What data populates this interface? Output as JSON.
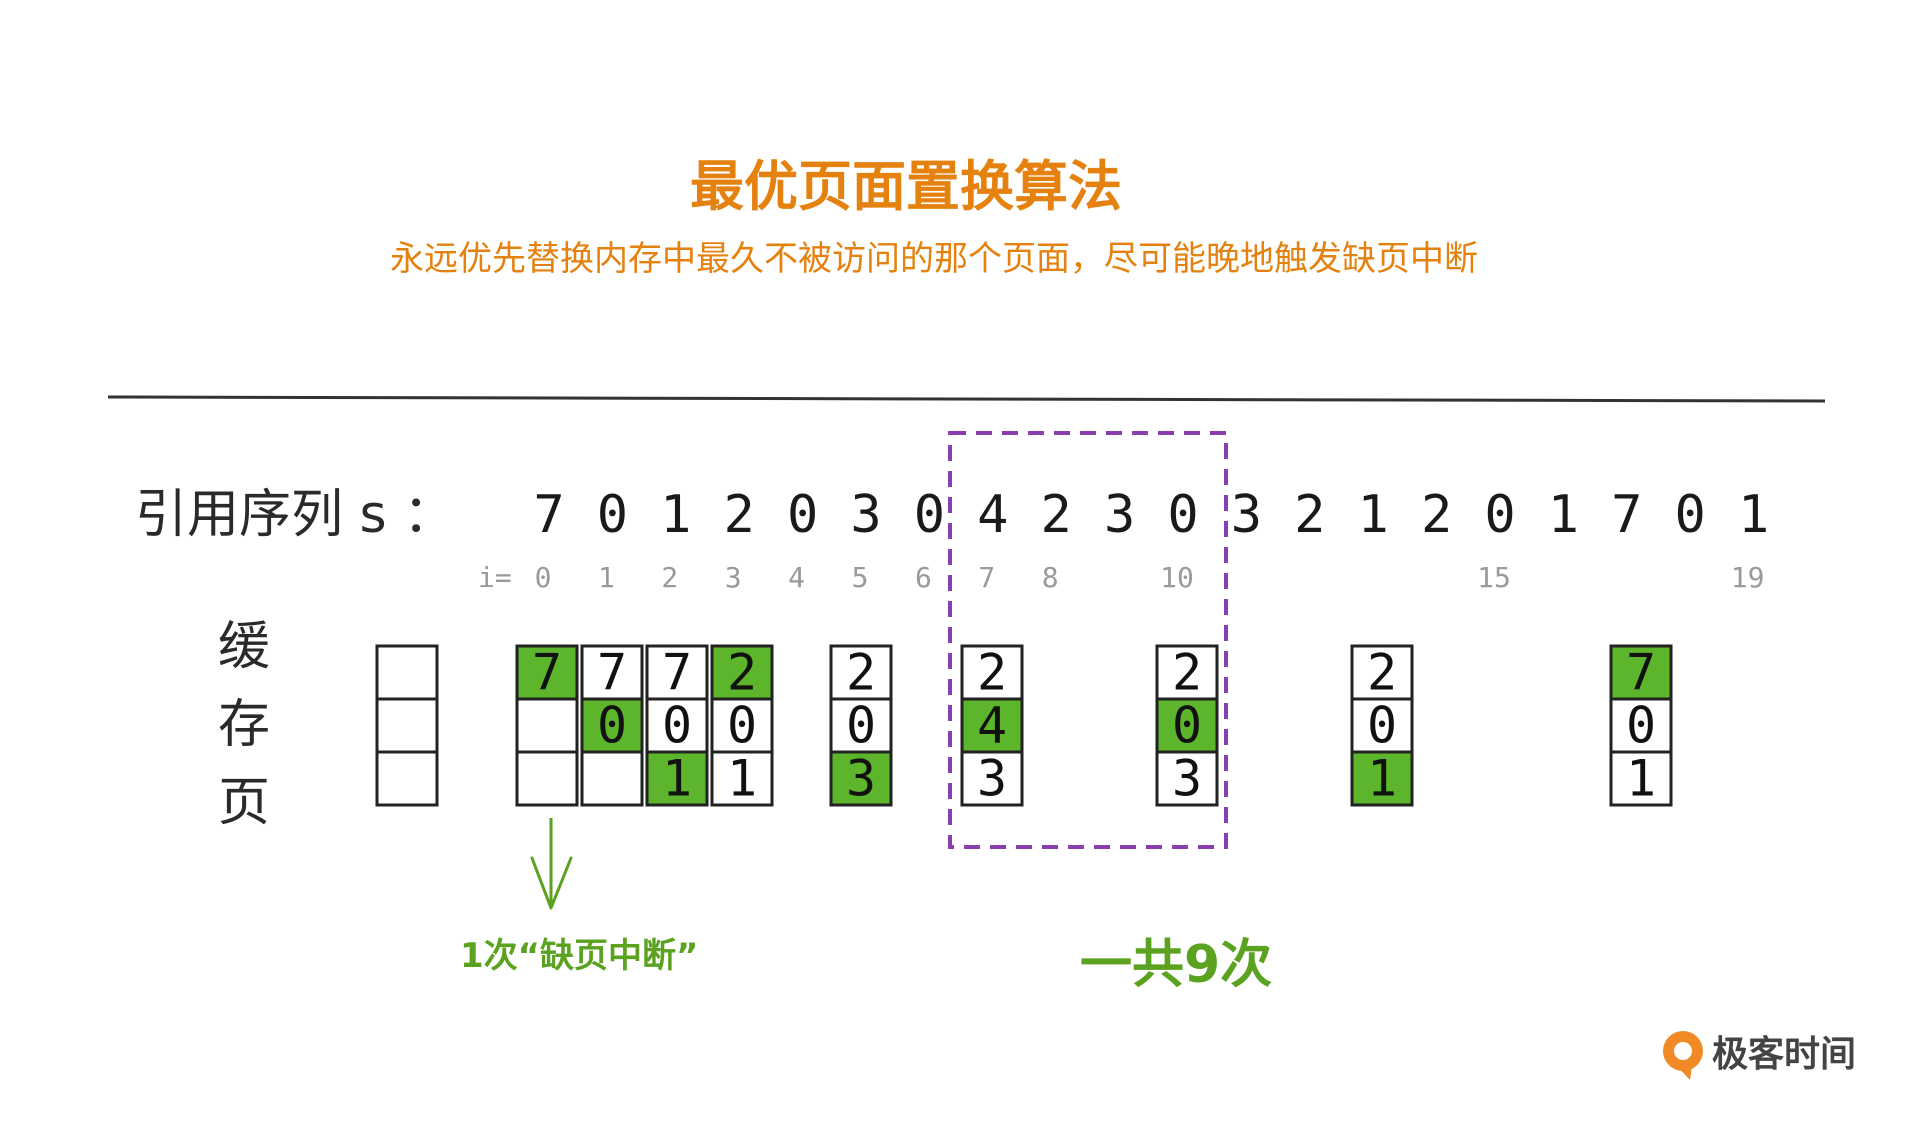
{
  "title": "最优页面置换算法",
  "subtitle": "永远优先替换内存中最久不被访问的那个页面，尽可能晚地触发缺页中断",
  "sequence": {
    "label": "引用序列 s ：",
    "values": [
      "7",
      "0",
      "1",
      "2",
      "0",
      "3",
      "0",
      "4",
      "2",
      "3",
      "0",
      "3",
      "2",
      "1",
      "2",
      "0",
      "1",
      "7",
      "0",
      "1"
    ],
    "index_prefix": "i=",
    "indices": [
      {
        "seq_pos": 0,
        "text": "0"
      },
      {
        "seq_pos": 1,
        "text": "1"
      },
      {
        "seq_pos": 2,
        "text": "2"
      },
      {
        "seq_pos": 3,
        "text": "3"
      },
      {
        "seq_pos": 4,
        "text": "4"
      },
      {
        "seq_pos": 5,
        "text": "5"
      },
      {
        "seq_pos": 6,
        "text": "6"
      },
      {
        "seq_pos": 7,
        "text": "7"
      },
      {
        "seq_pos": 8,
        "text": "8"
      },
      {
        "seq_pos": 10,
        "text": "10"
      },
      {
        "seq_pos": 15,
        "text": "15"
      },
      {
        "seq_pos": 19,
        "text": "19"
      }
    ]
  },
  "cache": {
    "label_chars": [
      "缓",
      "存",
      "页"
    ],
    "initial_frames": [
      "",
      "",
      ""
    ],
    "snapshots": [
      {
        "frames": [
          "7",
          "",
          ""
        ],
        "highlight": [
          true,
          false,
          false
        ]
      },
      {
        "frames": [
          "7",
          "0",
          ""
        ],
        "highlight": [
          false,
          true,
          false
        ]
      },
      {
        "frames": [
          "7",
          "0",
          "1"
        ],
        "highlight": [
          false,
          false,
          true
        ]
      },
      {
        "frames": [
          "2",
          "0",
          "1"
        ],
        "highlight": [
          true,
          false,
          false
        ]
      },
      {
        "frames": [
          "2",
          "0",
          "3"
        ],
        "highlight": [
          false,
          false,
          true
        ]
      },
      {
        "frames": [
          "2",
          "4",
          "3"
        ],
        "highlight": [
          false,
          true,
          false
        ]
      },
      {
        "frames": [
          "2",
          "0",
          "3"
        ],
        "highlight": [
          false,
          true,
          false
        ]
      },
      {
        "frames": [
          "2",
          "0",
          "1"
        ],
        "highlight": [
          false,
          false,
          true
        ]
      },
      {
        "frames": [
          "7",
          "0",
          "1"
        ],
        "highlight": [
          true,
          false,
          false
        ]
      }
    ]
  },
  "annotations": {
    "first_fault": "1次“缺页中断”",
    "total": "一共9次"
  },
  "logo": {
    "text": "极客时间",
    "icon": "geektime-logo-icon"
  },
  "colors": {
    "title": "#e5820f",
    "highlight": "#5cb52a",
    "annotation": "#5aa21f",
    "window_border": "#8a3fb0"
  }
}
